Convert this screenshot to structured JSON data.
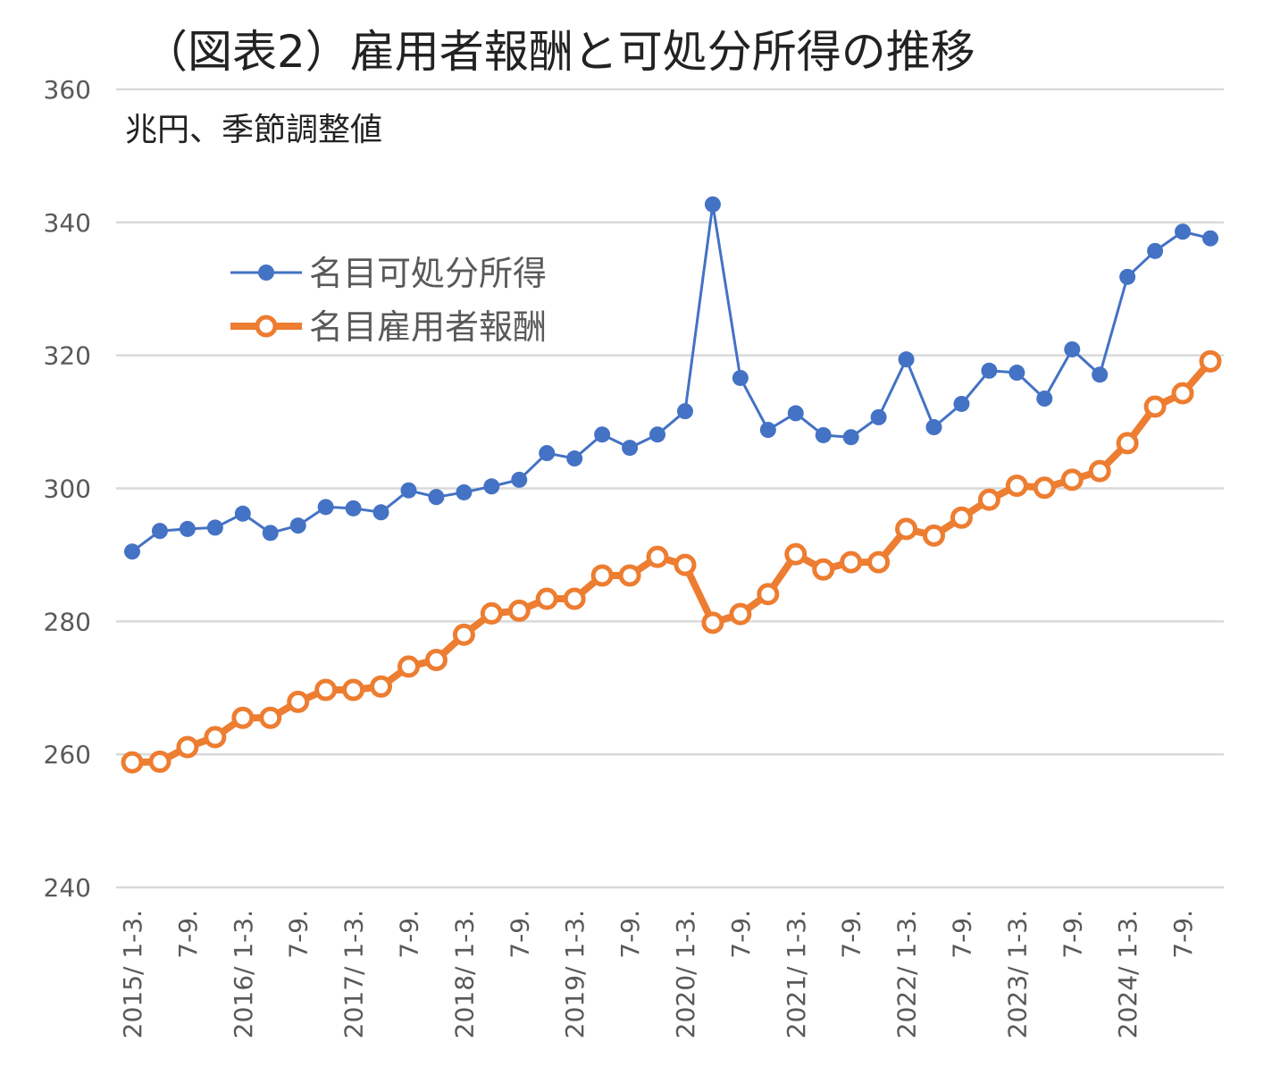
{
  "chart_data": {
    "type": "line",
    "title": "（図表2）雇用者報酬と可処分所得の推移",
    "subtitle": "兆円、季節調整値",
    "ylabel": "兆円",
    "ylim": [
      240,
      360
    ],
    "yticks": [
      "240",
      "260",
      "280",
      "300",
      "320",
      "340",
      "360"
    ],
    "grid": true,
    "legend_position": "top-left",
    "xtick_labels": [
      "2015/ 1-3.",
      "7-9.",
      "2016/ 1-3.",
      "7-9.",
      "2017/ 1-3.",
      "7-9.",
      "2018/ 1-3.",
      "7-9.",
      "2019/ 1-3.",
      "7-9.",
      "2020/ 1-3.",
      "7-9.",
      "2021/ 1-3.",
      "7-9.",
      "2022/ 1-3.",
      "7-9.",
      "2023/ 1-3.",
      "7-9.",
      "2024/ 1-3.",
      "7-9."
    ],
    "n_points": 40,
    "series": [
      {
        "name": "名目可処分所得",
        "color": "#4472C4",
        "values": [
          290.5,
          293.6,
          293.9,
          294.1,
          296.2,
          293.3,
          294.4,
          297.2,
          297.0,
          296.4,
          299.7,
          298.7,
          299.4,
          300.3,
          301.3,
          305.3,
          304.5,
          308.1,
          306.1,
          308.1,
          311.6,
          342.7,
          316.6,
          308.8,
          311.3,
          308.0,
          307.7,
          310.7,
          319.4,
          309.2,
          312.7,
          317.7,
          317.4,
          313.5,
          320.9,
          317.1,
          331.8,
          335.7,
          338.6,
          337.6
        ]
      },
      {
        "name": "名目雇用者報酬",
        "color": "#ED7D31",
        "values": [
          258.8,
          258.9,
          261.1,
          262.6,
          265.5,
          265.5,
          267.9,
          269.7,
          269.7,
          270.2,
          273.2,
          274.2,
          278.0,
          281.2,
          281.6,
          283.4,
          283.4,
          286.9,
          286.9,
          289.7,
          288.5,
          279.8,
          281.1,
          284.1,
          290.1,
          287.8,
          288.9,
          288.9,
          293.9,
          292.9,
          295.6,
          298.3,
          300.4,
          300.1,
          301.3,
          302.6,
          306.8,
          312.3,
          314.3,
          319.1
        ]
      }
    ]
  }
}
